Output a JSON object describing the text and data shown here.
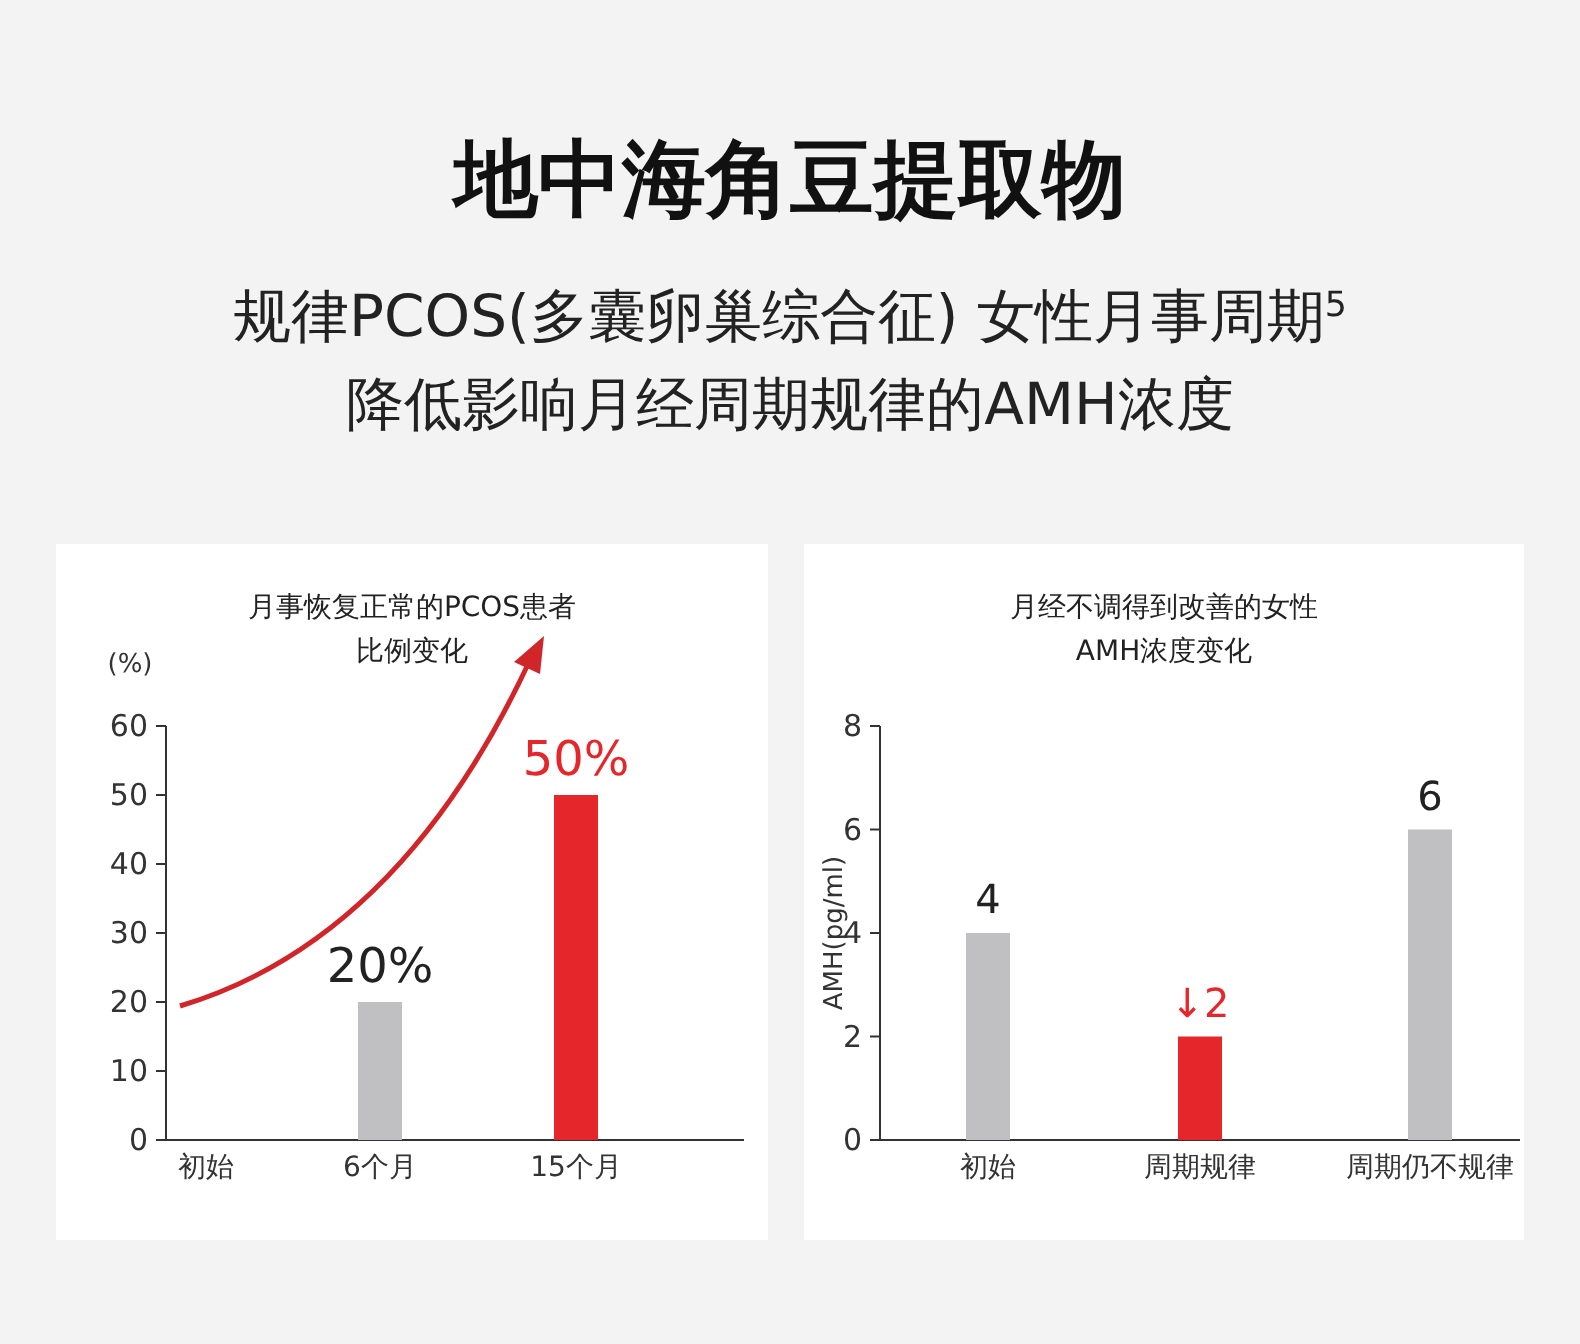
{
  "chart_data": [
    {
      "type": "other",
      "title": "地中海角豆提取物",
      "annotations": [
        "规律PCOS(多囊卵巢综合征) 女性月事周期$^{5}$",
        "降低影响月经周期规律的AMH浓度"
      ]
    },
    {
      "type": "bar",
      "title": "月事恢复正常的PCOS患者",
      "subtitle": "比例变化",
      "ylabel": "(%)",
      "categories": [
        "初始",
        "6个月",
        "15个月"
      ],
      "values": [
        null,
        20,
        50
      ],
      "colors": [
        null,
        "#c0bfc1",
        "#e5262a"
      ],
      "value_labels": [
        null,
        "20%",
        "50%"
      ],
      "ylim": [
        0,
        60
      ],
      "yticks": [
        0,
        10,
        20,
        30,
        40,
        50,
        60
      ]
    },
    {
      "type": "bar",
      "title": "月经不调得到改善的女性",
      "subtitle": "AMH浓度变化",
      "ylabel": "AMH(pg/ml)",
      "categories": [
        "初始",
        "周期规律",
        "周期仍不规律"
      ],
      "values": [
        4,
        2,
        6
      ],
      "colors": [
        "#c0bfc1",
        "#e5262a",
        "#c0bfc1"
      ],
      "value_labels": [
        "4",
        "↓2",
        "6"
      ],
      "ylim": [
        0,
        8
      ],
      "yticks": [
        0,
        2,
        4,
        6,
        8
      ]
    }
  ]
}
